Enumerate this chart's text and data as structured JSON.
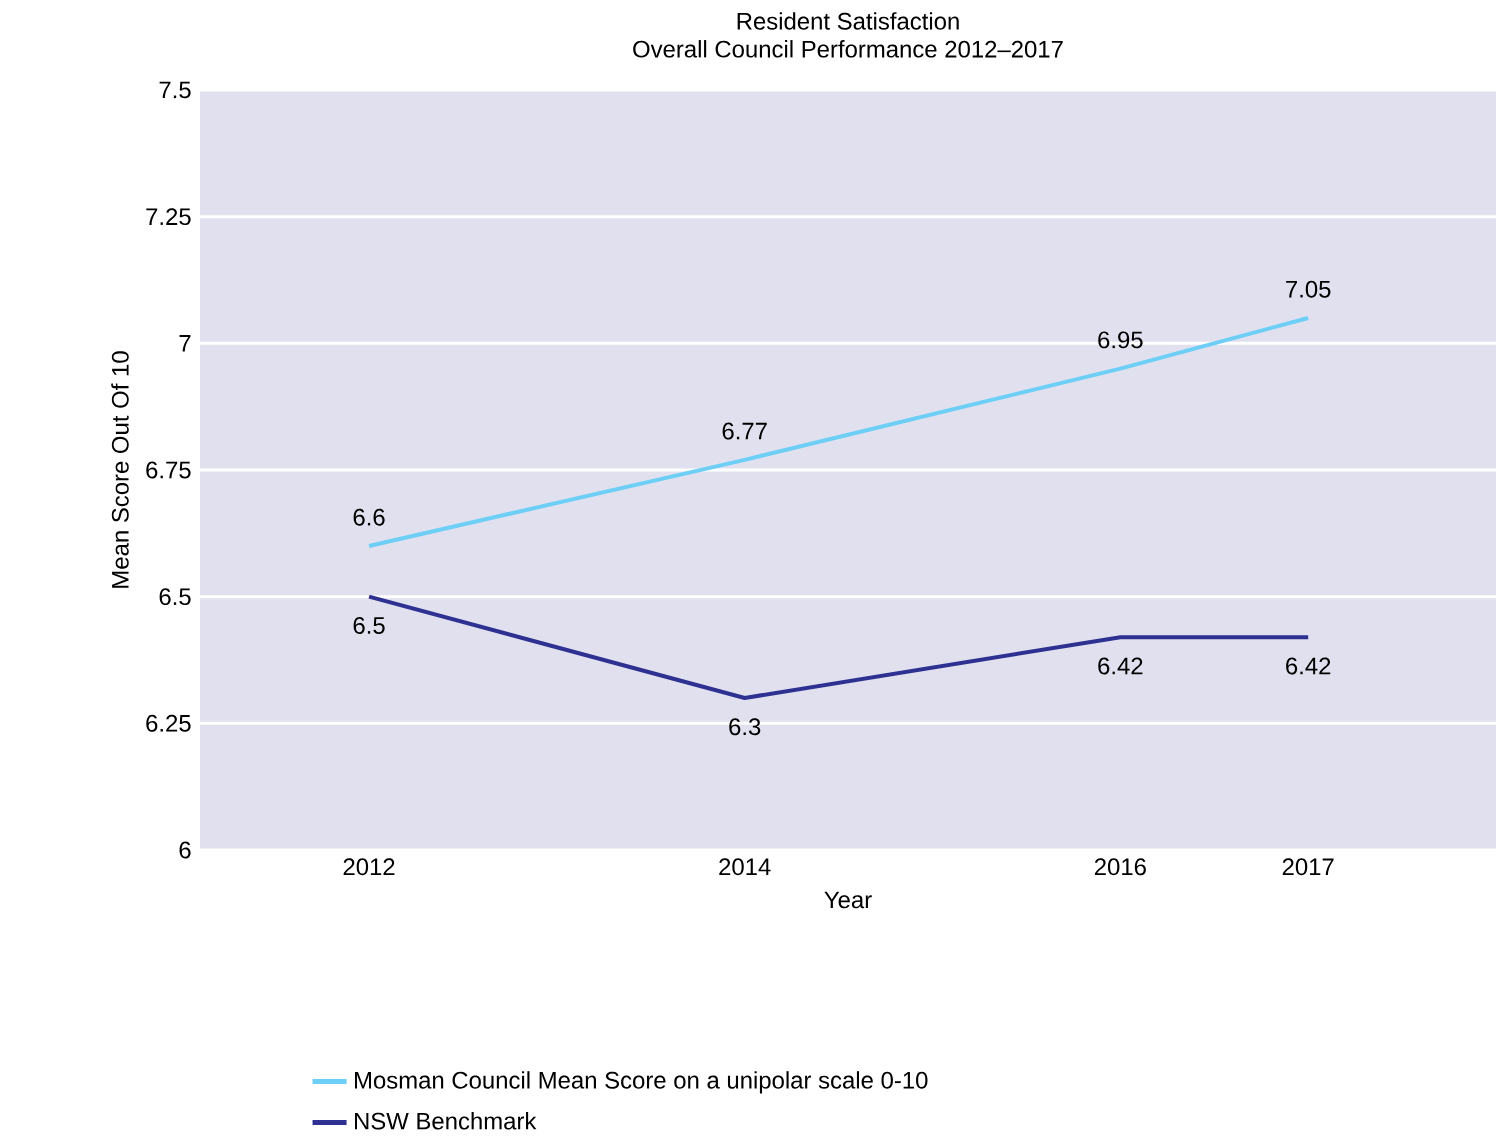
{
  "chart_data": {
    "type": "line",
    "title": "Resident Satisfaction",
    "subtitle": "Overall Council Performance 2012–2017",
    "xlabel": "Year",
    "ylabel": "Mean Score Out Of 10",
    "x": [
      2012,
      2014,
      2016,
      2017
    ],
    "xlim": [
      2011.1,
      2018
    ],
    "xticks": [
      2012,
      2014,
      2016,
      2017
    ],
    "ylim": [
      6,
      7.5
    ],
    "yticks": [
      6,
      6.25,
      6.5,
      6.75,
      7,
      7.25,
      7.5
    ],
    "series": [
      {
        "name": "Mosman Council Mean Score on a unipolar scale 0-10",
        "color": "#6dcff6",
        "values": [
          6.6,
          6.77,
          6.95,
          7.05
        ]
      },
      {
        "name": "NSW Benchmark",
        "color": "#2e3192",
        "values": [
          6.5,
          6.3,
          6.42,
          6.42
        ]
      }
    ],
    "data_labels": true,
    "grid": "y",
    "legend": "bottom",
    "marker": "none",
    "line_style": "solid"
  }
}
